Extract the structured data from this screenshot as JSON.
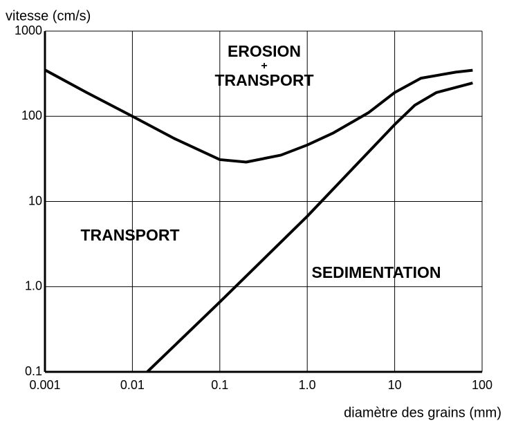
{
  "chart_data": {
    "type": "line",
    "xlabel": "diamètre des grains (mm)",
    "ylabel": "vitesse (cm/s)",
    "xscale": "log",
    "yscale": "log",
    "grid": true,
    "xlim": [
      0.001,
      100
    ],
    "ylim": [
      0.1,
      1000
    ],
    "xticks": [
      0.001,
      0.01,
      0.1,
      {
        "value": 1,
        "label": "1.0"
      },
      10,
      100
    ],
    "yticks": [
      0.1,
      {
        "value": 1,
        "label": "1.0"
      },
      10,
      100,
      1000
    ],
    "annotations": [
      "EROSION",
      "+",
      "TRANSPORT",
      "TRANSPORT",
      "SEDIMENTATION"
    ],
    "series": [
      {
        "color": "#000000",
        "x": [
          0.001,
          0.003,
          0.01,
          0.03,
          0.1,
          0.2,
          0.5,
          1,
          2,
          5,
          10,
          20,
          50,
          78
        ],
        "values": [
          350,
          190,
          100,
          55,
          31,
          29,
          35,
          46,
          64,
          110,
          190,
          280,
          330,
          347
        ]
      },
      {
        "color": "#000000",
        "x": [
          0.0148,
          0.1,
          1,
          10,
          17,
          30,
          78
        ],
        "values": [
          0.1,
          0.66,
          6.7,
          80,
          135,
          190,
          246
        ]
      }
    ]
  }
}
